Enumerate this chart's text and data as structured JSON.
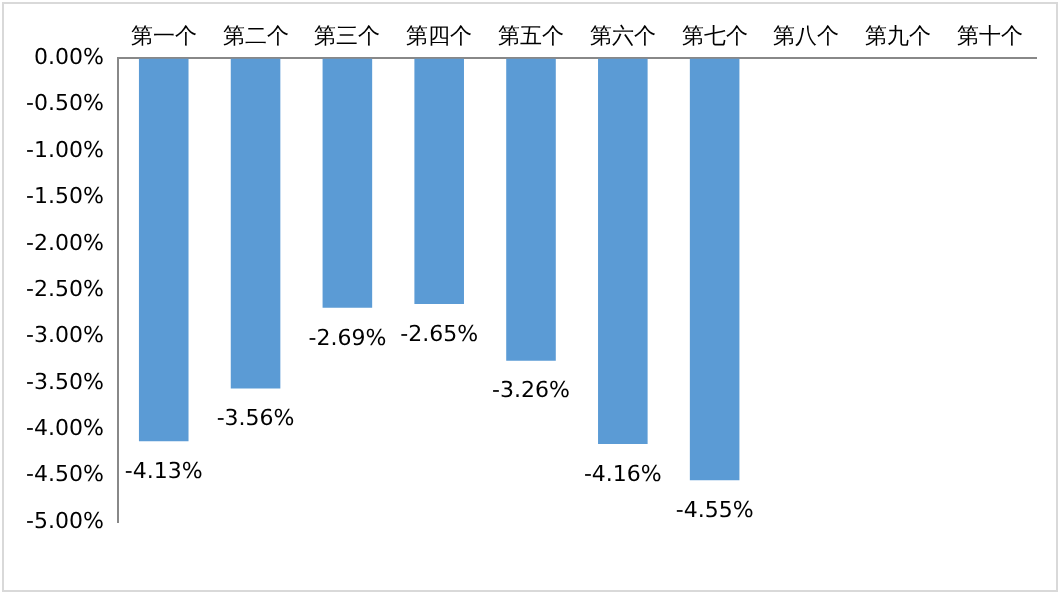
{
  "chart_data": {
    "type": "bar",
    "categories": [
      "第一个",
      "第二个",
      "第三个",
      "第四个",
      "第五个",
      "第六个",
      "第七个",
      "第八个",
      "第九个",
      "第十个"
    ],
    "values": [
      -4.13,
      -3.56,
      -2.69,
      -2.65,
      -3.26,
      -4.16,
      -4.55,
      null,
      null,
      null
    ],
    "value_labels": [
      "-4.13%",
      "-3.56%",
      "-2.69%",
      "-2.65%",
      "-3.26%",
      "-4.16%",
      "-4.55%",
      null,
      null,
      null
    ],
    "color": "#5b9bd5",
    "ylim": [
      -5,
      0
    ],
    "yticks": [
      {
        "value": 0,
        "label": "0.00%"
      },
      {
        "value": -0.5,
        "label": "-0.50%"
      },
      {
        "value": -1,
        "label": "-1.00%"
      },
      {
        "value": -1.5,
        "label": "-1.50%"
      },
      {
        "value": -2,
        "label": "-2.00%"
      },
      {
        "value": -2.5,
        "label": "-2.50%"
      },
      {
        "value": -3,
        "label": "-3.00%"
      },
      {
        "value": -3.5,
        "label": "-3.50%"
      },
      {
        "value": -4,
        "label": "-4.00%"
      },
      {
        "value": -4.5,
        "label": "-4.50%"
      },
      {
        "value": -5,
        "label": "-5.00%"
      }
    ],
    "grid": false,
    "legend": false
  }
}
